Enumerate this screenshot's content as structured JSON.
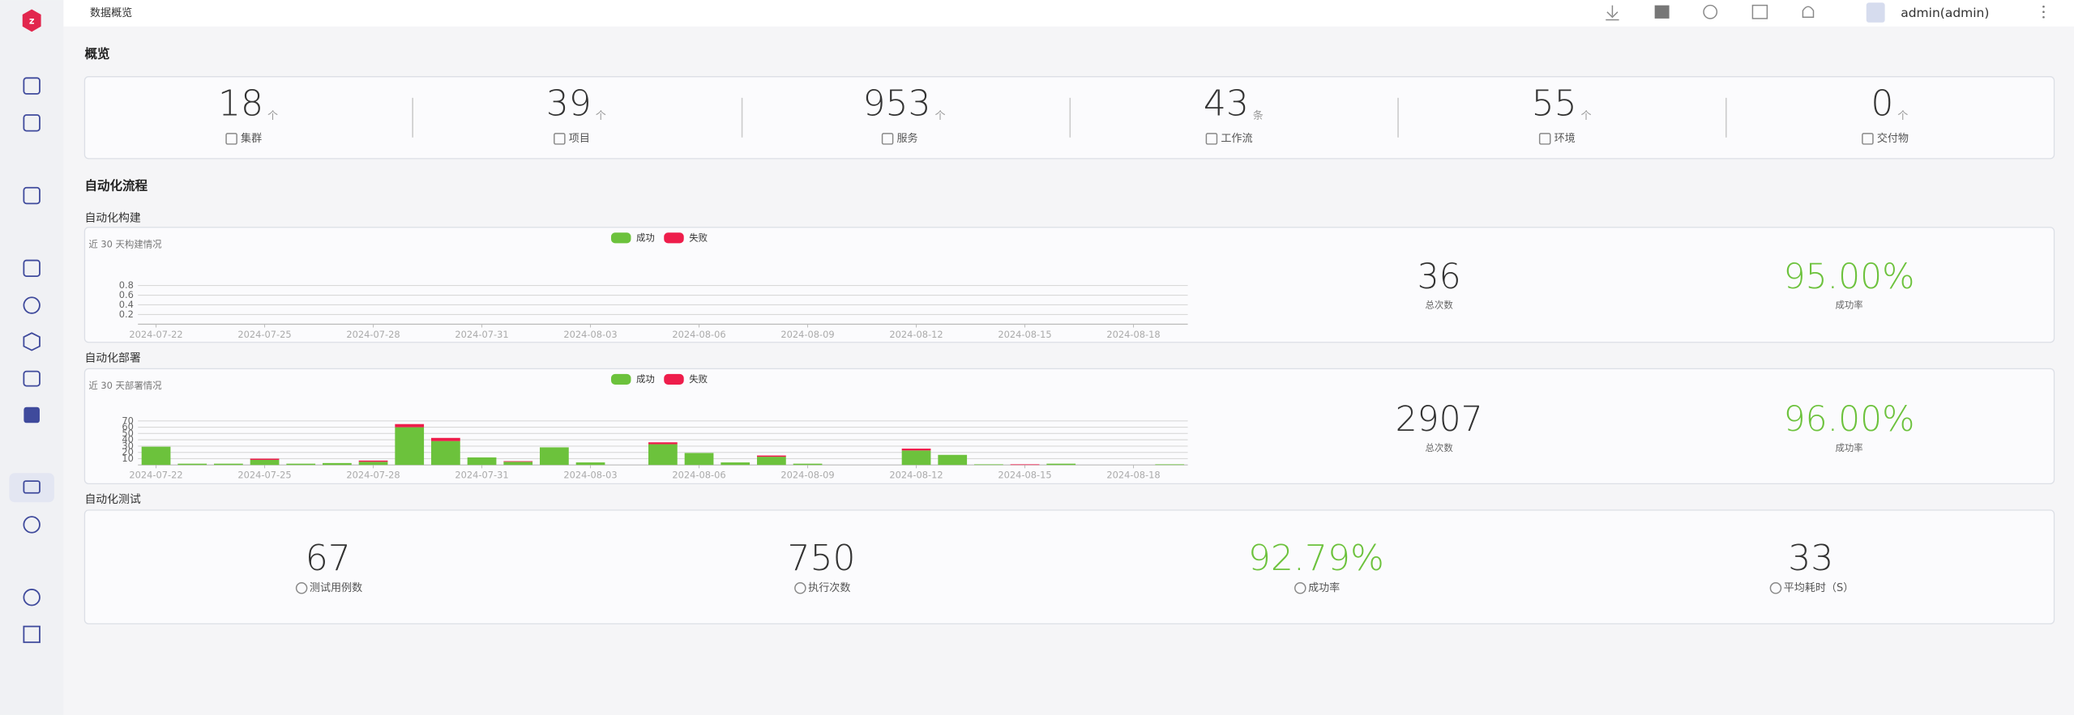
{
  "header": {
    "breadcrumb": "数据概览",
    "user": "admin(admin)"
  },
  "overview": {
    "title": "概览",
    "stats": [
      {
        "value": 18,
        "unit": "个",
        "label": "集群"
      },
      {
        "value": 39,
        "unit": "个",
        "label": "项目"
      },
      {
        "value": 953,
        "unit": "个",
        "label": "服务"
      },
      {
        "value": 43,
        "unit": "条",
        "label": "工作流"
      },
      {
        "value": 55,
        "unit": "个",
        "label": "环境"
      },
      {
        "value": 0,
        "unit": "个",
        "label": "交付物"
      }
    ]
  },
  "automation": {
    "title": "自动化流程",
    "build": {
      "title": "自动化构建",
      "chart": {
        "type": "bar",
        "subtitle": "近 30 天构建情况",
        "categories": [
          "2024-07-22",
          null,
          null,
          "2024-07-25",
          null,
          null,
          "2024-07-28",
          null,
          null,
          "2024-07-31",
          null,
          null,
          "2024-08-03",
          null,
          null,
          "2024-08-06",
          null,
          null,
          "2024-08-09",
          null,
          null,
          "2024-08-12",
          null,
          null,
          "2024-08-15",
          null,
          null,
          "2024-08-18",
          null
        ],
        "series": [
          {
            "name": "成功",
            "color": "#6cc23c",
            "values": [
              0,
              0,
              0,
              0,
              0,
              0,
              0,
              0,
              0,
              0,
              0,
              0,
              0,
              0,
              0,
              0,
              0,
              0,
              0,
              0,
              0,
              0,
              0,
              0,
              0,
              0,
              0,
              0,
              0
            ]
          },
          {
            "name": "失败",
            "color": "#ee1d4b",
            "values": [
              0,
              0,
              0,
              0,
              0,
              0,
              0,
              0,
              0,
              0,
              0,
              0,
              0,
              0,
              0,
              0,
              0,
              0,
              0,
              0,
              0,
              0,
              0,
              0,
              0,
              0,
              0,
              0,
              0
            ]
          }
        ],
        "stacked": true,
        "ylim": [
          0,
          1
        ],
        "yticks": [
          0.2,
          0.4,
          0.6,
          0.8
        ],
        "grid": true,
        "legend": "top"
      },
      "total": {
        "value": 36,
        "label": "总次数"
      },
      "rate": {
        "value": "95.00%",
        "label": "成功率"
      }
    },
    "deploy": {
      "title": "自动化部署",
      "chart": {
        "type": "bar",
        "subtitle": "近 30 天部署情况",
        "categories": [
          "2024-07-22",
          null,
          null,
          "2024-07-25",
          null,
          null,
          "2024-07-28",
          null,
          null,
          "2024-07-31",
          null,
          null,
          "2024-08-03",
          null,
          null,
          "2024-08-06",
          null,
          null,
          "2024-08-09",
          null,
          null,
          "2024-08-12",
          null,
          null,
          "2024-08-15",
          null,
          null,
          "2024-08-18",
          null
        ],
        "series": [
          {
            "name": "成功",
            "color": "#6cc23c",
            "values": [
              29,
              2,
              2,
              8,
              2,
              3,
              5,
              60,
              38,
              12,
              5,
              28,
              4,
              0,
              33,
              19,
              4,
              13,
              2,
              0,
              0,
              23,
              16,
              1,
              0,
              2,
              0,
              0,
              1
            ]
          },
          {
            "name": "失败",
            "color": "#ee1d4b",
            "values": [
              0,
              0,
              0,
              2,
              0,
              0,
              2,
              5,
              5,
              0,
              1,
              0,
              0,
              0,
              3,
              0,
              0,
              2,
              0,
              0,
              0,
              3,
              0,
              0,
              1,
              0,
              0,
              0,
              0
            ]
          }
        ],
        "stacked": true,
        "ylim": [
          0,
          70
        ],
        "yticks": [
          10,
          20,
          30,
          40,
          50,
          60,
          70
        ],
        "grid": true,
        "legend": "top"
      },
      "total": {
        "value": 2907,
        "label": "总次数"
      },
      "rate": {
        "value": "96.00%",
        "label": "成功率"
      }
    },
    "test": {
      "title": "自动化测试",
      "stats": [
        {
          "value": 67,
          "label": "测试用例数"
        },
        {
          "value": 750,
          "label": "执行次数"
        },
        {
          "value": "92.79%",
          "label": "成功率"
        },
        {
          "value": 33,
          "label": "平均耗时（S）"
        }
      ]
    }
  }
}
